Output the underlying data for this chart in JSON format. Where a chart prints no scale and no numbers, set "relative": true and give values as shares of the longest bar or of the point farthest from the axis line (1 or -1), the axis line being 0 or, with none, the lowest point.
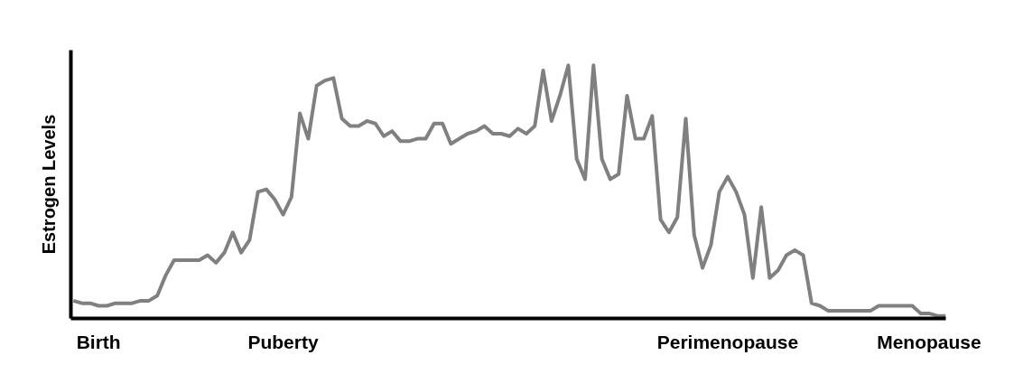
{
  "chart_data": {
    "type": "line",
    "relative": true,
    "ylabel": "Estrogen Levels",
    "categories": [
      null,
      null,
      null,
      "Birth",
      null,
      null,
      null,
      null,
      null,
      null,
      null,
      null,
      null,
      null,
      null,
      null,
      null,
      null,
      null,
      null,
      null,
      null,
      null,
      null,
      null,
      "Puberty",
      null,
      null,
      null,
      null,
      null,
      null,
      null,
      null,
      null,
      null,
      null,
      null,
      null,
      null,
      null,
      null,
      null,
      null,
      null,
      null,
      null,
      null,
      null,
      null,
      null,
      null,
      null,
      null,
      null,
      null,
      null,
      null,
      null,
      null,
      null,
      null,
      null,
      null,
      null,
      null,
      null,
      null,
      null,
      null,
      null,
      null,
      null,
      null,
      null,
      null,
      null,
      null,
      "Perimenopause",
      null,
      null,
      null,
      null,
      null,
      null,
      null,
      null,
      null,
      null,
      null,
      null,
      null,
      null,
      null,
      null,
      null,
      null,
      null,
      null,
      null,
      null,
      null,
      "Menopause",
      null,
      null
    ],
    "series": [
      {
        "color": "#808080",
        "values": [
          0.07,
          0.06,
          0.06,
          0.05,
          0.05,
          0.06,
          0.06,
          0.06,
          0.07,
          0.07,
          0.09,
          0.17,
          0.23,
          0.23,
          0.23,
          0.23,
          0.25,
          0.22,
          0.26,
          0.34,
          0.26,
          0.31,
          0.5,
          0.51,
          0.47,
          0.41,
          0.48,
          0.81,
          0.71,
          0.92,
          0.94,
          0.95,
          0.79,
          0.76,
          0.76,
          0.78,
          0.77,
          0.72,
          0.74,
          0.7,
          0.7,
          0.71,
          0.71,
          0.77,
          0.77,
          0.69,
          0.71,
          0.73,
          0.74,
          0.76,
          0.73,
          0.73,
          0.72,
          0.75,
          0.73,
          0.76,
          0.98,
          0.78,
          0.88,
          1.0,
          0.63,
          0.55,
          1.0,
          0.63,
          0.55,
          0.57,
          0.88,
          0.71,
          0.71,
          0.8,
          0.39,
          0.34,
          0.4,
          0.79,
          0.33,
          0.2,
          0.29,
          0.5,
          0.56,
          0.5,
          0.41,
          0.16,
          0.44,
          0.16,
          0.19,
          0.25,
          0.27,
          0.25,
          0.06,
          0.05,
          0.03,
          0.03,
          0.03,
          0.03,
          0.03,
          0.03,
          0.05,
          0.05,
          0.05,
          0.05,
          0.05,
          0.02,
          0.02,
          0.01,
          0.01
        ]
      }
    ]
  }
}
